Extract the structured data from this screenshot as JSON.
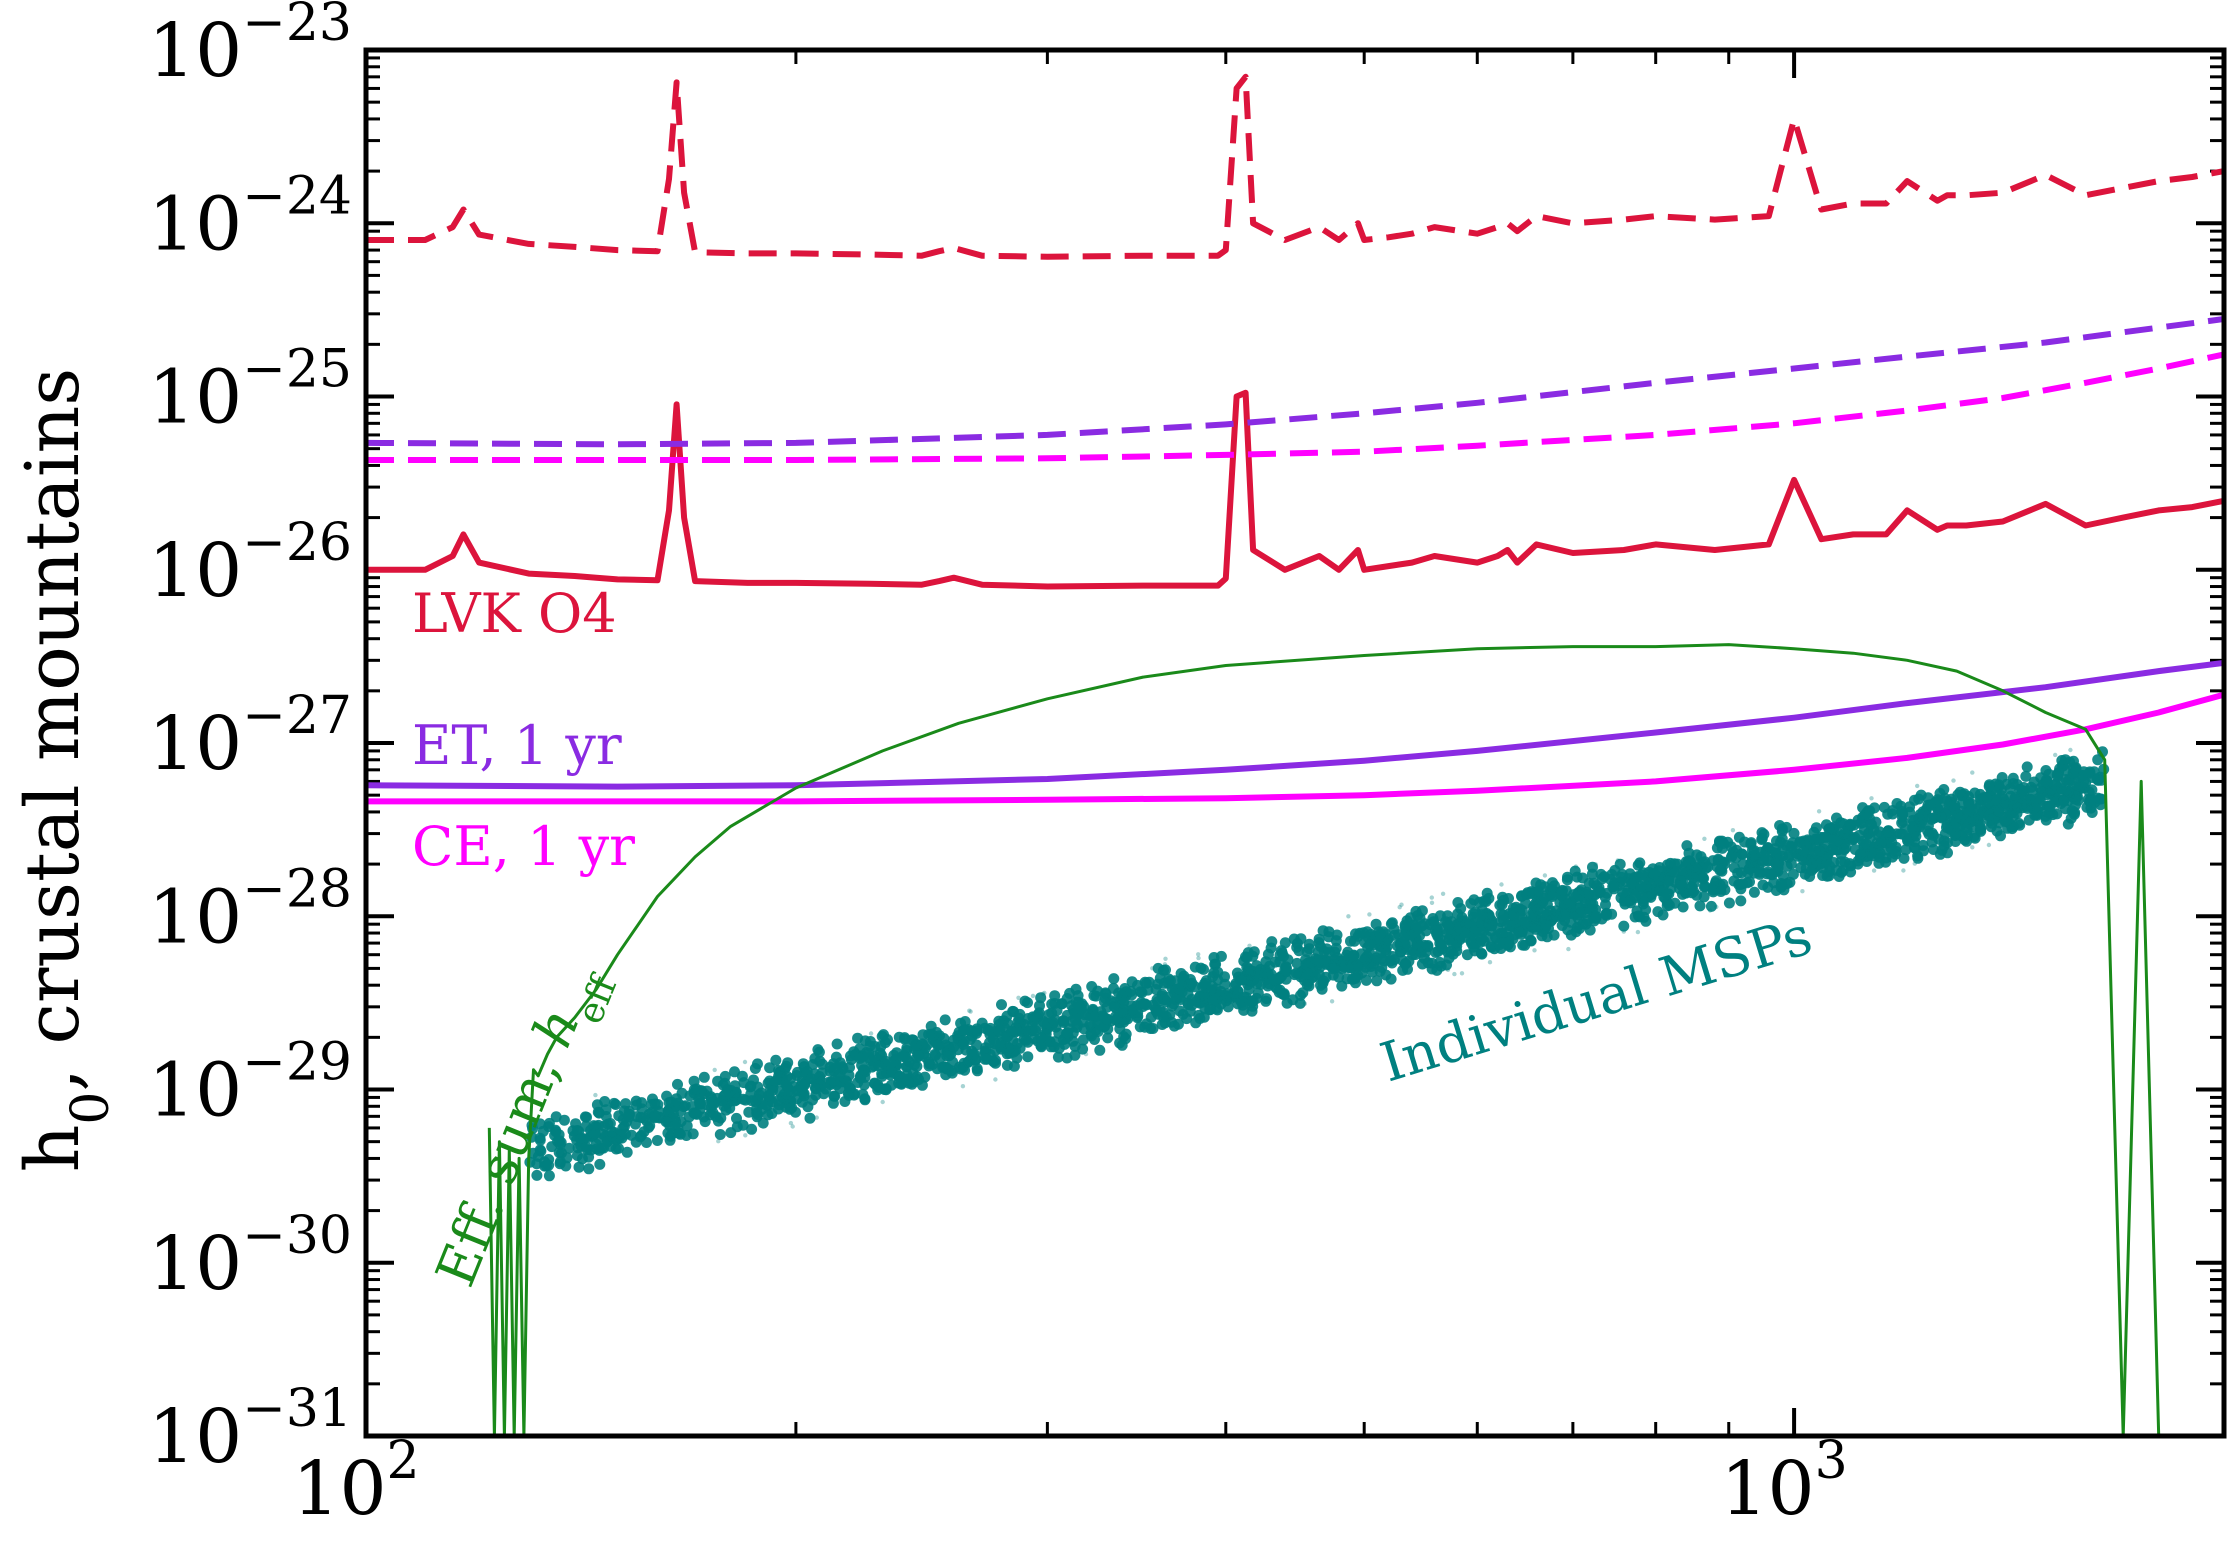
{
  "chart_data": {
    "type": "line",
    "title": "",
    "xscale": "log",
    "yscale": "log",
    "xlim": [
      100,
      2000
    ],
    "ylim": [
      1e-31,
      1e-23
    ],
    "xlabel": "",
    "ylabel": {
      "main": "h",
      "sub": "0",
      "rest": ", crustal mountains"
    },
    "x_ticks": [
      {
        "base": "10",
        "exp": "2",
        "value": 100
      },
      {
        "base": "10",
        "exp": "3",
        "value": 1000
      }
    ],
    "y_ticks": [
      {
        "base": "10",
        "exp": "−31",
        "value": 1e-31
      },
      {
        "base": "10",
        "exp": "−30",
        "value": 1e-30
      },
      {
        "base": "10",
        "exp": "−29",
        "value": 1e-29
      },
      {
        "base": "10",
        "exp": "−28",
        "value": 1e-28
      },
      {
        "base": "10",
        "exp": "−27",
        "value": 1e-27
      },
      {
        "base": "10",
        "exp": "−26",
        "value": 1e-26
      },
      {
        "base": "10",
        "exp": "−25",
        "value": 1e-25
      },
      {
        "base": "10",
        "exp": "−24",
        "value": 1e-24
      },
      {
        "base": "10",
        "exp": "−23",
        "value": 1e-23
      }
    ],
    "colors": {
      "lvk": "#dc143c",
      "et": "#8a2be2",
      "ce": "#ff00ff",
      "eff": "#1a8a1a",
      "msp": "#008080"
    },
    "series": [
      {
        "name": "LVK O4",
        "style": "solid",
        "color_key": "lvk",
        "x": [
          100,
          110,
          115,
          117,
          120,
          130,
          140,
          145,
          150,
          160,
          163,
          165,
          167,
          170,
          185,
          200,
          225,
          245,
          252,
          258,
          270,
          300,
          350,
          395,
          400,
          407,
          413,
          418,
          440,
          465,
          480,
          495,
          500,
          520,
          540,
          560,
          600,
          620,
          630,
          640,
          660,
          700,
          760,
          800,
          880,
          960,
          1000,
          1045,
          1100,
          1160,
          1200,
          1260,
          1280,
          1320,
          1400,
          1500,
          1600,
          1700,
          1800,
          1900,
          2000
        ],
        "y": [
          1e-26,
          1e-26,
          1.2e-26,
          1.6e-26,
          1.1e-26,
          9.5e-27,
          9.2e-27,
          9e-27,
          8.8e-27,
          8.7e-27,
          2.2e-26,
          9e-26,
          2e-26,
          8.6e-27,
          8.4e-27,
          8.4e-27,
          8.3e-27,
          8.2e-27,
          8.6e-27,
          9e-27,
          8.2e-27,
          8e-27,
          8.1e-27,
          8.1e-27,
          8.9e-27,
          1e-25,
          1.05e-25,
          1.3e-26,
          1e-26,
          1.2e-26,
          1e-26,
          1.3e-26,
          1e-26,
          1.05e-26,
          1.1e-26,
          1.2e-26,
          1.1e-26,
          1.2e-26,
          1.3e-26,
          1.1e-26,
          1.4e-26,
          1.25e-26,
          1.3e-26,
          1.4e-26,
          1.3e-26,
          1.4e-26,
          3.3e-26,
          1.5e-26,
          1.6e-26,
          1.6e-26,
          2.2e-26,
          1.7e-26,
          1.8e-26,
          1.8e-26,
          1.9e-26,
          2.4e-26,
          1.8e-26,
          2e-26,
          2.2e-26,
          2.3e-26,
          2.5e-26
        ]
      },
      {
        "name": "LVK O4 (dashed)",
        "style": "dashed",
        "color_key": "lvk",
        "x": [
          100,
          110,
          115,
          117,
          120,
          130,
          140,
          150,
          160,
          163,
          165,
          167,
          170,
          185,
          200,
          225,
          245,
          252,
          258,
          270,
          300,
          350,
          395,
          400,
          407,
          413,
          418,
          440,
          465,
          480,
          495,
          500,
          520,
          540,
          560,
          600,
          620,
          630,
          640,
          660,
          700,
          760,
          800,
          880,
          960,
          1000,
          1045,
          1100,
          1160,
          1200,
          1260,
          1280,
          1320,
          1400,
          1500,
          1600,
          1700,
          1800,
          1900,
          2000
        ],
        "y": [
          8e-25,
          8e-25,
          9.5e-25,
          1.2e-24,
          8.6e-25,
          7.6e-25,
          7.3e-25,
          7e-25,
          6.9e-25,
          1.8e-24,
          6.5e-24,
          1.5e-24,
          6.8e-25,
          6.7e-25,
          6.7e-25,
          6.6e-25,
          6.5e-25,
          6.9e-25,
          7.2e-25,
          6.5e-25,
          6.4e-25,
          6.5e-25,
          6.5e-25,
          7e-25,
          6e-24,
          7e-24,
          1e-24,
          8e-25,
          9.5e-25,
          8e-25,
          1e-24,
          8e-25,
          8.3e-25,
          8.7e-25,
          9.5e-25,
          8.7e-25,
          9.5e-25,
          1e-24,
          9e-25,
          1.1e-24,
          1e-24,
          1.05e-24,
          1.1e-24,
          1.05e-24,
          1.1e-24,
          4e-24,
          1.2e-24,
          1.3e-24,
          1.3e-24,
          1.75e-24,
          1.35e-24,
          1.45e-24,
          1.45e-24,
          1.5e-24,
          1.9e-24,
          1.45e-24,
          1.6e-24,
          1.75e-24,
          1.85e-24,
          2e-24
        ]
      },
      {
        "name": "ET, 1 yr",
        "style": "solid",
        "color_key": "et",
        "x": [
          100,
          150,
          200,
          300,
          400,
          500,
          600,
          800,
          1000,
          1200,
          1500,
          1800,
          2000
        ],
        "y": [
          5.7e-28,
          5.6e-28,
          5.7e-28,
          6.2e-28,
          7e-28,
          7.9e-28,
          9e-28,
          1.15e-27,
          1.4e-27,
          1.7e-27,
          2.1e-27,
          2.6e-27,
          2.9e-27
        ]
      },
      {
        "name": "ET, 1 yr (dashed)",
        "style": "dashed",
        "color_key": "et",
        "x": [
          100,
          150,
          200,
          300,
          400,
          500,
          600,
          800,
          1000,
          1200,
          1500,
          1800,
          2000
        ],
        "y": [
          5.4e-26,
          5.3e-26,
          5.4e-26,
          6e-26,
          6.9e-26,
          8e-26,
          9.2e-26,
          1.2e-25,
          1.45e-25,
          1.7e-25,
          2.05e-25,
          2.5e-25,
          2.8e-25
        ]
      },
      {
        "name": "CE, 1 yr",
        "style": "solid",
        "color_key": "ce",
        "x": [
          100,
          150,
          200,
          300,
          400,
          500,
          600,
          800,
          1000,
          1200,
          1400,
          1600,
          1800,
          2000
        ],
        "y": [
          4.6e-28,
          4.6e-28,
          4.6e-28,
          4.7e-28,
          4.8e-28,
          5e-28,
          5.3e-28,
          6e-28,
          7e-28,
          8.2e-28,
          9.8e-28,
          1.2e-27,
          1.5e-27,
          1.9e-27
        ]
      },
      {
        "name": "CE, 1 yr (dashed)",
        "style": "dashed",
        "color_key": "ce",
        "x": [
          100,
          150,
          200,
          300,
          400,
          500,
          600,
          800,
          1000,
          1200,
          1400,
          1600,
          1800,
          2000
        ],
        "y": [
          4.3e-26,
          4.3e-26,
          4.3e-26,
          4.4e-26,
          4.6e-26,
          4.8e-26,
          5.2e-26,
          6e-26,
          7e-26,
          8.3e-26,
          9.8e-26,
          1.2e-25,
          1.45e-25,
          1.75e-25
        ]
      },
      {
        "name": "Eff. sum, h_eff",
        "style": "solid-thin",
        "color_key": "eff",
        "x": [
          122,
          123,
          124,
          125,
          126,
          127,
          128,
          129,
          130,
          131,
          132,
          134,
          136,
          140,
          145,
          150,
          160,
          170,
          180,
          200,
          230,
          260,
          300,
          350,
          400,
          500,
          600,
          700,
          800,
          900,
          1000,
          1100,
          1200,
          1300,
          1400,
          1500,
          1600,
          1650,
          1700,
          1750,
          1800
        ],
        "y": [
          6e-30,
          1e-31,
          5e-30,
          1e-31,
          4.5e-30,
          1e-31,
          4e-30,
          1e-31,
          4e-30,
          1.3e-29,
          1.2e-29,
          1.6e-29,
          2e-29,
          2.6e-29,
          3.8e-29,
          6e-29,
          1.3e-28,
          2.2e-28,
          3.3e-28,
          5.5e-28,
          9e-28,
          1.3e-27,
          1.8e-27,
          2.4e-27,
          2.8e-27,
          3.2e-27,
          3.5e-27,
          3.6e-27,
          3.6e-27,
          3.7e-27,
          3.5e-27,
          3.3e-27,
          3e-27,
          2.6e-27,
          2e-27,
          1.5e-27,
          1.2e-27,
          8e-28,
          1e-31,
          6e-28,
          1e-31
        ]
      },
      {
        "name": "Individual MSPs",
        "style": "scatter",
        "color_key": "msp",
        "x_range": [
          130,
          1650
        ],
        "y_at_x_min": 4.5e-30,
        "y_at_x_max": 6e-28
      }
    ],
    "labels": [
      {
        "text": "LVK O4",
        "color_key": "lvk"
      },
      {
        "text": "ET, 1 yr",
        "color_key": "et"
      },
      {
        "text": "CE, 1 yr",
        "color_key": "ce"
      },
      {
        "text": "Individual MSPs",
        "color_key": "msp"
      },
      {
        "text_main": "Eff. sum, ",
        "text_h": "h",
        "text_sub": "eff",
        "color_key": "eff"
      }
    ]
  }
}
